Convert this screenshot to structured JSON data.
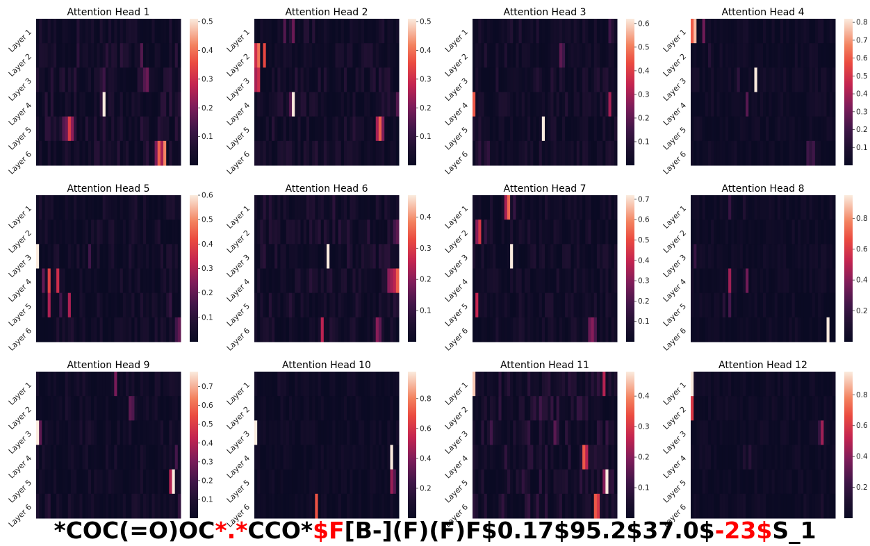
{
  "chart_data": {
    "type": "heatmap",
    "row_labels": [
      "Layer 1",
      "Layer 2",
      "Layer 3",
      "Layer 4",
      "Layer 5",
      "Layer 6"
    ],
    "n_columns": 50,
    "colormap": "rocket",
    "panels": [
      {
        "title": "Attention Head 1",
        "colorbar_ticks": [
          "0.1",
          "0.2",
          "0.3",
          "0.4",
          "0.5"
        ],
        "colorbar_max": 0.51,
        "hotspots": [
          [
            3,
            23,
            0.51
          ],
          [
            4,
            11,
            0.33
          ],
          [
            4,
            12,
            0.22
          ],
          [
            4,
            10,
            0.18
          ],
          [
            4,
            9,
            0.15
          ],
          [
            5,
            42,
            0.38
          ],
          [
            5,
            44,
            0.42
          ],
          [
            5,
            43,
            0.25
          ],
          [
            5,
            41,
            0.2
          ],
          [
            2,
            38,
            0.18
          ],
          [
            2,
            37,
            0.15
          ],
          [
            2,
            23,
            0.12
          ],
          [
            1,
            36,
            0.15
          ]
        ],
        "base_max": 0.09
      },
      {
        "title": "Attention Head 2",
        "colorbar_ticks": [
          "0.1",
          "0.2",
          "0.3",
          "0.4",
          "0.5"
        ],
        "colorbar_max": 0.51,
        "hotspots": [
          [
            1,
            1,
            0.4
          ],
          [
            1,
            3,
            0.35
          ],
          [
            1,
            0,
            0.3
          ],
          [
            2,
            1,
            0.3
          ],
          [
            2,
            0,
            0.25
          ],
          [
            3,
            13,
            0.51
          ],
          [
            3,
            12,
            0.15
          ],
          [
            4,
            43,
            0.38
          ],
          [
            4,
            42,
            0.25
          ],
          [
            4,
            44,
            0.2
          ],
          [
            0,
            13,
            0.18
          ],
          [
            0,
            10,
            0.15
          ],
          [
            3,
            49,
            0.15
          ]
        ],
        "base_max": 0.08
      },
      {
        "title": "Attention Head 3",
        "colorbar_ticks": [
          "0.1",
          "0.2",
          "0.3",
          "0.4",
          "0.5",
          "0.6"
        ],
        "colorbar_max": 0.62,
        "hotspots": [
          [
            4,
            24,
            0.62
          ],
          [
            3,
            0,
            0.45
          ],
          [
            1,
            30,
            0.2
          ],
          [
            1,
            31,
            0.15
          ],
          [
            3,
            47,
            0.3
          ],
          [
            5,
            2,
            0.12
          ],
          [
            5,
            5,
            0.12
          ],
          [
            0,
            47,
            0.15
          ]
        ],
        "base_max": 0.09
      },
      {
        "title": "Attention Head 4",
        "colorbar_ticks": [
          "0.1",
          "0.2",
          "0.3",
          "0.4",
          "0.5",
          "0.6",
          "0.7",
          "0.8"
        ],
        "colorbar_max": 0.82,
        "hotspots": [
          [
            0,
            1,
            0.75
          ],
          [
            0,
            0,
            0.6
          ],
          [
            0,
            4,
            0.3
          ],
          [
            2,
            22,
            0.82
          ],
          [
            3,
            19,
            0.25
          ],
          [
            5,
            40,
            0.2
          ],
          [
            5,
            42,
            0.2
          ],
          [
            5,
            41,
            0.15
          ],
          [
            1,
            6,
            0.12
          ],
          [
            2,
            16,
            0.15
          ]
        ],
        "base_max": 0.07
      },
      {
        "title": "Attention Head 5",
        "colorbar_ticks": [
          "0.1",
          "0.2",
          "0.3",
          "0.4",
          "0.5",
          "0.6"
        ],
        "colorbar_max": 0.6,
        "hotspots": [
          [
            2,
            0,
            0.6
          ],
          [
            3,
            4,
            0.4
          ],
          [
            3,
            7,
            0.35
          ],
          [
            3,
            2,
            0.2
          ],
          [
            4,
            4,
            0.3
          ],
          [
            4,
            11,
            0.3
          ],
          [
            4,
            8,
            0.15
          ],
          [
            5,
            49,
            0.2
          ],
          [
            5,
            48,
            0.15
          ],
          [
            2,
            18,
            0.15
          ],
          [
            4,
            46,
            0.12
          ]
        ],
        "base_max": 0.08
      },
      {
        "title": "Attention Head 6",
        "colorbar_ticks": [
          "0.1",
          "0.2",
          "0.3",
          "0.4"
        ],
        "colorbar_max": 0.47,
        "hotspots": [
          [
            2,
            25,
            0.47
          ],
          [
            3,
            49,
            0.35
          ],
          [
            3,
            48,
            0.25
          ],
          [
            3,
            47,
            0.22
          ],
          [
            3,
            46,
            0.2
          ],
          [
            5,
            23,
            0.25
          ],
          [
            5,
            42,
            0.2
          ],
          [
            5,
            43,
            0.15
          ],
          [
            1,
            49,
            0.15
          ],
          [
            1,
            48,
            0.12
          ]
        ],
        "base_max": 0.08
      },
      {
        "title": "Attention Head 7",
        "colorbar_ticks": [
          "0.1",
          "0.2",
          "0.3",
          "0.4",
          "0.5",
          "0.6",
          "0.7"
        ],
        "colorbar_max": 0.72,
        "hotspots": [
          [
            0,
            12,
            0.55
          ],
          [
            0,
            11,
            0.35
          ],
          [
            1,
            2,
            0.45
          ],
          [
            1,
            1,
            0.3
          ],
          [
            1,
            4,
            0.15
          ],
          [
            2,
            13,
            0.72
          ],
          [
            4,
            1,
            0.4
          ],
          [
            5,
            40,
            0.25
          ],
          [
            5,
            41,
            0.3
          ],
          [
            5,
            42,
            0.2
          ],
          [
            0,
            14,
            0.15
          ]
        ],
        "base_max": 0.09
      },
      {
        "title": "Attention Head 8",
        "colorbar_ticks": [
          "0.2",
          "0.4",
          "0.6",
          "0.8"
        ],
        "colorbar_max": 0.95,
        "hotspots": [
          [
            5,
            47,
            0.95
          ],
          [
            3,
            13,
            0.45
          ],
          [
            3,
            19,
            0.35
          ],
          [
            4,
            13,
            0.25
          ],
          [
            4,
            11,
            0.15
          ],
          [
            0,
            13,
            0.2
          ],
          [
            2,
            1,
            0.2
          ],
          [
            0,
            18,
            0.12
          ]
        ],
        "base_max": 0.07
      },
      {
        "title": "Attention Head 9",
        "colorbar_ticks": [
          "0.1",
          "0.2",
          "0.3",
          "0.4",
          "0.5",
          "0.6",
          "0.7"
        ],
        "colorbar_max": 0.78,
        "hotspots": [
          [
            2,
            0,
            0.78
          ],
          [
            2,
            1,
            0.25
          ],
          [
            4,
            47,
            0.78
          ],
          [
            4,
            46,
            0.4
          ],
          [
            0,
            27,
            0.3
          ],
          [
            1,
            32,
            0.25
          ],
          [
            1,
            33,
            0.22
          ],
          [
            3,
            48,
            0.2
          ],
          [
            5,
            49,
            0.15
          ],
          [
            5,
            4,
            0.12
          ]
        ],
        "base_max": 0.09
      },
      {
        "title": "Attention Head 10",
        "colorbar_ticks": [
          "0.2",
          "0.4",
          "0.6",
          "0.8"
        ],
        "colorbar_max": 0.98,
        "hotspots": [
          [
            2,
            0,
            0.98
          ],
          [
            3,
            47,
            0.98
          ],
          [
            4,
            47,
            0.45
          ],
          [
            4,
            48,
            0.3
          ],
          [
            5,
            21,
            0.7
          ],
          [
            0,
            8,
            0.1
          ]
        ],
        "base_max": 0.07
      },
      {
        "title": "Attention Head 11",
        "colorbar_ticks": [
          "0.1",
          "0.2",
          "0.3",
          "0.4"
        ],
        "colorbar_max": 0.48,
        "hotspots": [
          [
            0,
            0,
            0.45
          ],
          [
            0,
            45,
            0.25
          ],
          [
            4,
            46,
            0.48
          ],
          [
            4,
            45,
            0.2
          ],
          [
            3,
            38,
            0.35
          ],
          [
            3,
            39,
            0.25
          ],
          [
            5,
            42,
            0.35
          ],
          [
            5,
            43,
            0.3
          ],
          [
            1,
            23,
            0.12
          ],
          [
            2,
            28,
            0.15
          ],
          [
            2,
            6,
            0.12
          ]
        ],
        "base_max": 0.1
      },
      {
        "title": "Attention Head 12",
        "colorbar_ticks": [
          "0.2",
          "0.4",
          "0.6",
          "0.8"
        ],
        "colorbar_max": 0.95,
        "hotspots": [
          [
            0,
            0,
            0.95
          ],
          [
            1,
            0,
            0.6
          ],
          [
            2,
            45,
            0.45
          ],
          [
            2,
            44,
            0.2
          ],
          [
            3,
            20,
            0.15
          ],
          [
            3,
            18,
            0.12
          ],
          [
            5,
            45,
            0.1
          ]
        ],
        "base_max": 0.07
      }
    ]
  },
  "caption": {
    "segments": [
      {
        "text": "*COC(=O)OC",
        "color": "#000000"
      },
      {
        "text": "*.*",
        "color": "#ff0000"
      },
      {
        "text": "CCO*",
        "color": "#000000"
      },
      {
        "text": "$F",
        "color": "#ff0000"
      },
      {
        "text": "[B-](F)(F)F$0.17$95.2$37.0$",
        "color": "#000000"
      },
      {
        "text": "-23$",
        "color": "#ff0000"
      },
      {
        "text": "S_1",
        "color": "#000000"
      }
    ]
  }
}
